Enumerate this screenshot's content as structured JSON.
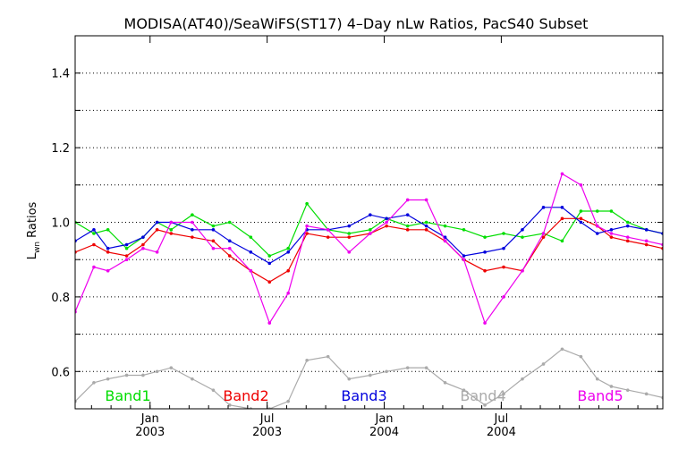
{
  "chart_data": {
    "type": "line",
    "title": "MODISA(AT40)/SeaWiFS(ST17) 4–Day nLw Ratios, PacS40 Subset",
    "ylabel_main": "L",
    "ylabel_sub": "wn",
    "ylabel_rest": " Ratios",
    "ylim": [
      0.5,
      1.5
    ],
    "yticks": [
      0.6,
      0.8,
      1.0,
      1.2,
      1.4
    ],
    "ytick_labels": [
      "0.6",
      "0.8",
      "1.0",
      "1.2",
      "1.4"
    ],
    "grid": "horizontal-dotted",
    "x": [
      2002.92,
      2002.95,
      2003.0,
      2003.04,
      2003.09,
      2003.14,
      2003.19,
      2003.24,
      2003.28,
      2003.33,
      2003.38,
      2003.43,
      2003.47,
      2003.52,
      2003.57,
      2003.62,
      2003.66,
      2003.71,
      2003.76,
      2003.81,
      2003.85,
      2003.9,
      2003.95,
      2004.0,
      2004.04,
      2004.09,
      2004.14,
      2004.19,
      2004.24,
      2004.28,
      2004.33,
      2004.38,
      2004.43,
      2004.47,
      2004.52,
      2004.57,
      2004.62,
      2004.66,
      2004.71,
      2004.76,
      2004.81,
      2004.86,
      2004.9,
      2004.94,
      2004.99,
      2005.04,
      2005.09,
      2005.14,
      2005.19
    ],
    "xlim": [
      2002.68,
      2005.19
    ],
    "xticks": [
      {
        "value": 2003.0,
        "month": "Jan",
        "year": "2003"
      },
      {
        "value": 2003.5,
        "month": "Jul",
        "year": "2003"
      },
      {
        "value": 2004.0,
        "month": "Jan",
        "year": "2004"
      },
      {
        "value": 2004.5,
        "month": "Jul",
        "year": "2004"
      }
    ],
    "series": [
      {
        "name": "Band1",
        "color": "#00dd00",
        "x": [
          2002.68,
          2002.76,
          2002.82,
          2002.9,
          2002.97,
          2003.03,
          2003.09,
          2003.18,
          2003.27,
          2003.34,
          2003.43,
          2003.51,
          2003.59,
          2003.67,
          2003.76,
          2003.85,
          2003.94,
          2004.01,
          2004.1,
          2004.18,
          2004.26,
          2004.34,
          2004.43,
          2004.51,
          2004.59,
          2004.68,
          2004.76,
          2004.84,
          2004.91,
          2004.97,
          2005.04,
          2005.12,
          2005.19
        ],
        "y": [
          1.0,
          0.97,
          0.98,
          0.93,
          0.96,
          1.0,
          0.98,
          1.02,
          0.99,
          1.0,
          0.96,
          0.91,
          0.93,
          1.05,
          0.98,
          0.97,
          0.98,
          1.01,
          0.99,
          1.0,
          0.99,
          0.98,
          0.96,
          0.97,
          0.96,
          0.97,
          0.95,
          1.03,
          1.03,
          1.03,
          1.0,
          0.98,
          0.97
        ]
      },
      {
        "name": "Band2",
        "color": "#ee0000",
        "x": [
          2002.68,
          2002.76,
          2002.82,
          2002.9,
          2002.97,
          2003.03,
          2003.09,
          2003.18,
          2003.27,
          2003.34,
          2003.43,
          2003.51,
          2003.59,
          2003.67,
          2003.76,
          2003.85,
          2003.94,
          2004.01,
          2004.1,
          2004.18,
          2004.26,
          2004.34,
          2004.43,
          2004.51,
          2004.59,
          2004.68,
          2004.76,
          2004.84,
          2004.91,
          2004.97,
          2005.04,
          2005.12,
          2005.19
        ],
        "y": [
          0.92,
          0.94,
          0.92,
          0.91,
          0.94,
          0.98,
          0.97,
          0.96,
          0.95,
          0.91,
          0.87,
          0.84,
          0.87,
          0.97,
          0.96,
          0.96,
          0.97,
          0.99,
          0.98,
          0.98,
          0.95,
          0.9,
          0.87,
          0.88,
          0.87,
          0.96,
          1.01,
          1.01,
          0.99,
          0.96,
          0.95,
          0.94,
          0.93
        ]
      },
      {
        "name": "Band3",
        "color": "#0000dd",
        "x": [
          2002.68,
          2002.76,
          2002.82,
          2002.9,
          2002.97,
          2003.03,
          2003.09,
          2003.18,
          2003.27,
          2003.34,
          2003.43,
          2003.51,
          2003.59,
          2003.67,
          2003.76,
          2003.85,
          2003.94,
          2004.01,
          2004.1,
          2004.18,
          2004.26,
          2004.34,
          2004.43,
          2004.51,
          2004.59,
          2004.68,
          2004.76,
          2004.84,
          2004.91,
          2004.97,
          2005.04,
          2005.12,
          2005.19
        ],
        "y": [
          0.95,
          0.98,
          0.93,
          0.94,
          0.96,
          1.0,
          1.0,
          0.98,
          0.98,
          0.95,
          0.92,
          0.89,
          0.92,
          0.98,
          0.98,
          0.99,
          1.02,
          1.01,
          1.02,
          0.99,
          0.96,
          0.91,
          0.92,
          0.93,
          0.98,
          1.04,
          1.04,
          1.0,
          0.97,
          0.98,
          0.99,
          0.98,
          0.97
        ]
      },
      {
        "name": "Band4",
        "color": "#aaaaaa",
        "x": [
          2002.68,
          2002.76,
          2002.82,
          2002.9,
          2002.97,
          2003.03,
          2003.09,
          2003.18,
          2003.27,
          2003.34,
          2003.43,
          2003.51,
          2003.59,
          2003.67,
          2003.76,
          2003.85,
          2003.94,
          2004.01,
          2004.1,
          2004.18,
          2004.26,
          2004.34,
          2004.43,
          2004.51,
          2004.59,
          2004.68,
          2004.76,
          2004.84,
          2004.91,
          2004.97,
          2005.04,
          2005.12,
          2005.19
        ],
        "y": [
          0.52,
          0.57,
          0.58,
          0.59,
          0.59,
          0.6,
          0.61,
          0.58,
          0.55,
          0.51,
          0.5,
          0.5,
          0.52,
          0.63,
          0.64,
          0.58,
          0.59,
          0.6,
          0.61,
          0.61,
          0.57,
          0.55,
          0.51,
          0.54,
          0.58,
          0.62,
          0.66,
          0.64,
          0.58,
          0.56,
          0.55,
          0.54,
          0.53
        ]
      },
      {
        "name": "Band5",
        "color": "#ee00ee",
        "x": [
          2002.68,
          2002.76,
          2002.82,
          2002.9,
          2002.97,
          2003.03,
          2003.09,
          2003.18,
          2003.27,
          2003.34,
          2003.43,
          2003.51,
          2003.59,
          2003.67,
          2003.76,
          2003.85,
          2003.94,
          2004.01,
          2004.1,
          2004.18,
          2004.26,
          2004.34,
          2004.43,
          2004.51,
          2004.59,
          2004.68,
          2004.76,
          2004.84,
          2004.91,
          2004.97,
          2005.04,
          2005.12,
          2005.19
        ],
        "y": [
          0.76,
          0.88,
          0.87,
          0.9,
          0.93,
          0.92,
          1.0,
          1.0,
          0.93,
          0.93,
          0.87,
          0.73,
          0.81,
          0.99,
          0.98,
          0.92,
          0.97,
          1.0,
          1.06,
          1.06,
          0.95,
          0.9,
          0.73,
          0.8,
          0.87,
          0.97,
          1.13,
          1.1,
          0.99,
          0.97,
          0.96,
          0.95,
          0.94
        ]
      }
    ],
    "legend": [
      "Band1",
      "Band2",
      "Band3",
      "Band4",
      "Band5"
    ],
    "legend_placement": "bottom-inside"
  }
}
